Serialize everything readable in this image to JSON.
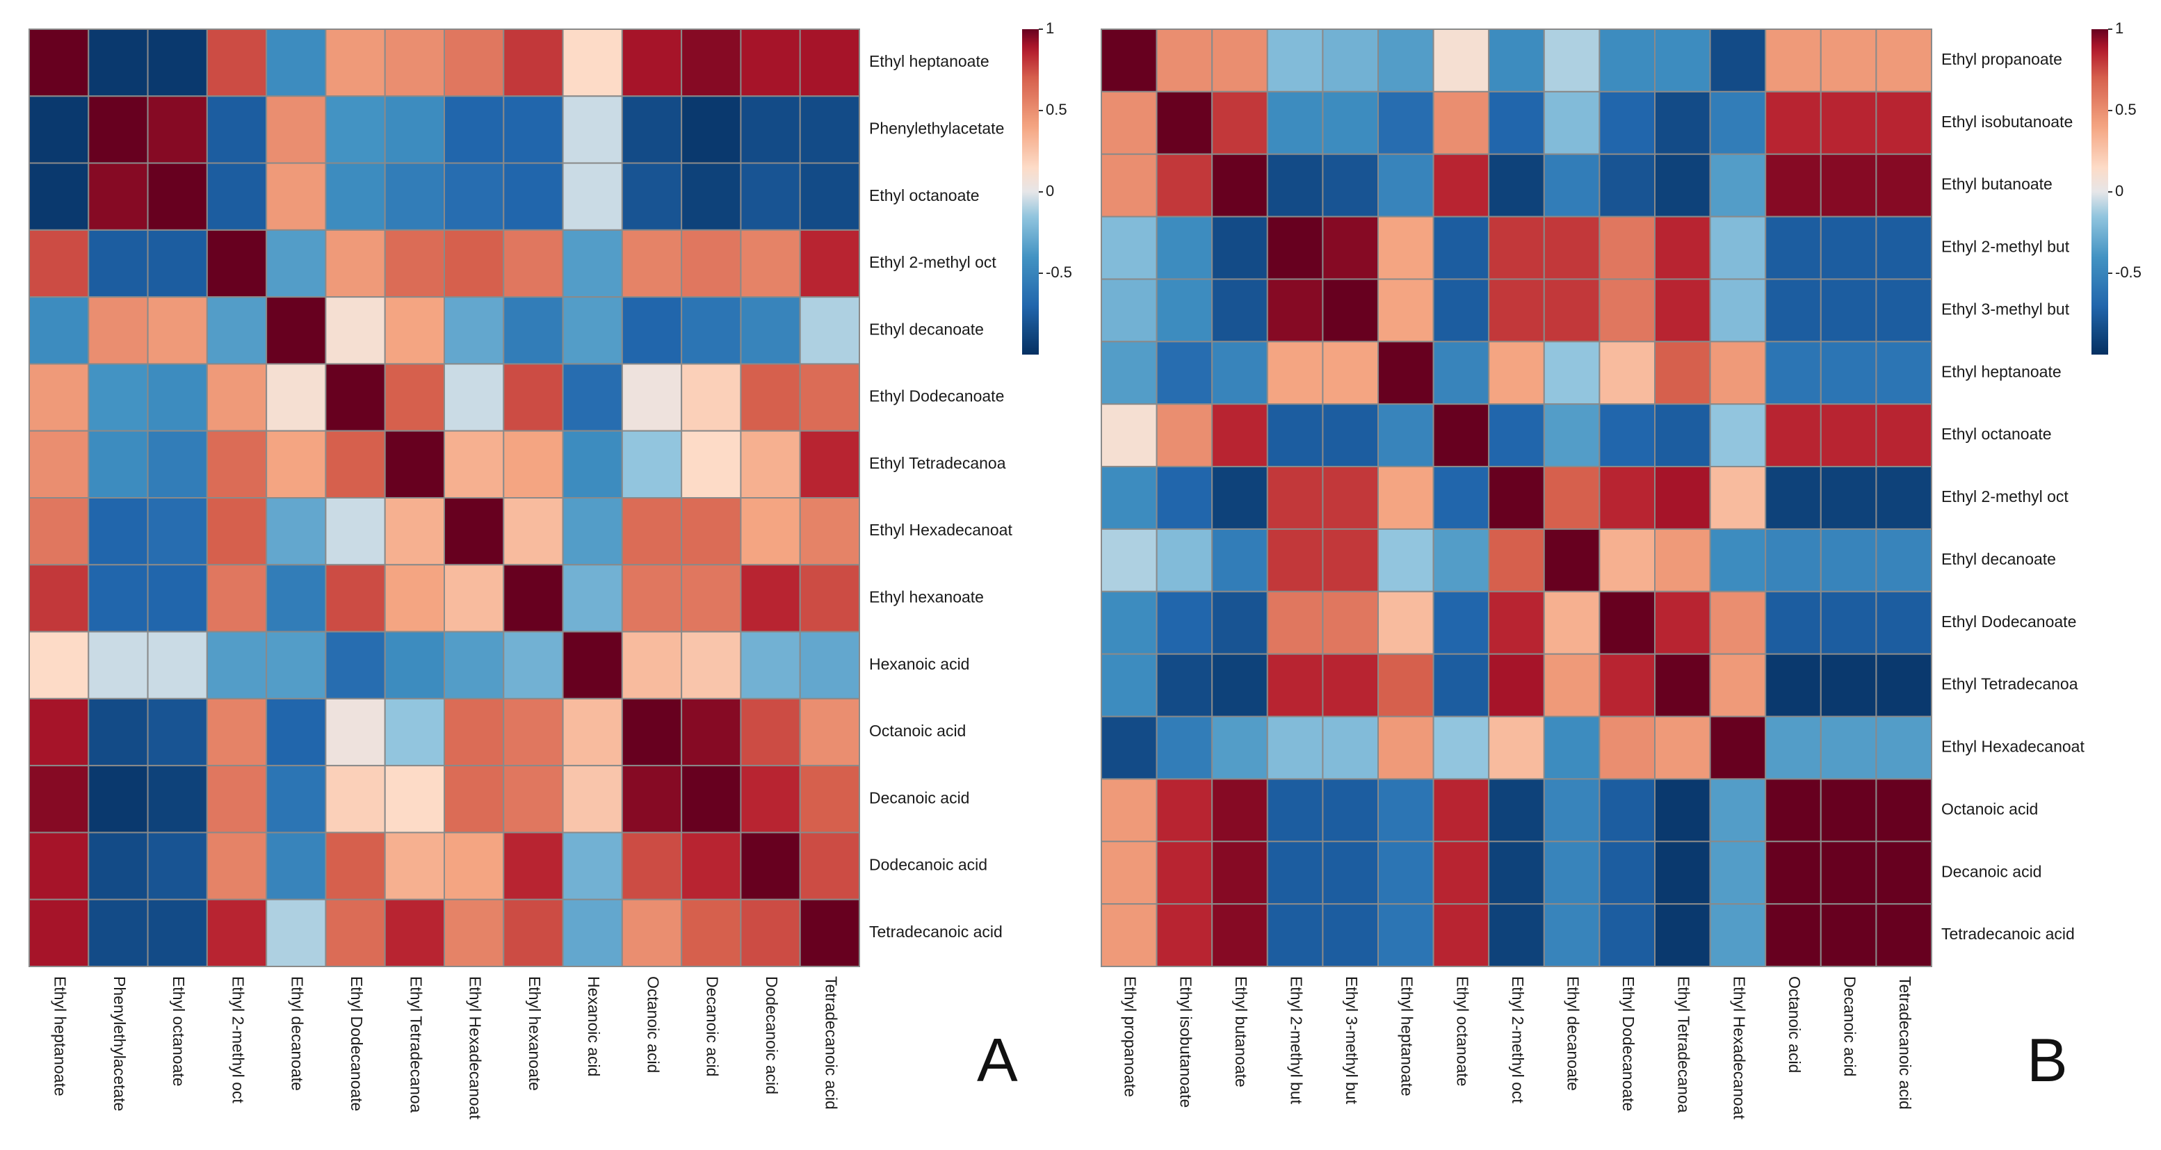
{
  "chart_data": [
    {
      "type": "heatmap",
      "panel_label": "A",
      "rows": [
        "Ethyl heptanoate",
        "Phenylethylacetate",
        "Ethyl octanoate",
        "Ethyl 2-methyl oct",
        "Ethyl decanoate",
        "Ethyl Dodecanoate",
        "Ethyl Tetradecanoa",
        "Ethyl Hexadecanoat",
        "Ethyl hexanoate",
        "Hexanoic acid",
        "Octanoic acid",
        "Decanoic acid",
        "Dodecanoic acid",
        "Tetradecanoic acid"
      ],
      "columns": [
        "Ethyl heptanoate",
        "Phenylethylacetate",
        "Ethyl octanoate",
        "Ethyl 2-methyl oct",
        "Ethyl decanoate",
        "Ethyl Dodecanoate",
        "Ethyl Tetradecanoa",
        "Ethyl Hexadecanoat",
        "Ethyl hexanoate",
        "Hexanoic acid",
        "Octanoic acid",
        "Decanoic acid",
        "Dodecanoic acid",
        "Tetradecanoic acid"
      ],
      "values": [
        [
          1.0,
          -0.95,
          -0.95,
          0.75,
          -0.45,
          0.45,
          0.5,
          0.6,
          0.8,
          0.15,
          0.9,
          0.95,
          0.9,
          0.9
        ],
        [
          -0.95,
          1.0,
          0.95,
          -0.75,
          0.5,
          -0.4,
          -0.45,
          -0.7,
          -0.7,
          -0.05,
          -0.85,
          -0.95,
          -0.85,
          -0.85
        ],
        [
          -0.95,
          0.95,
          1.0,
          -0.75,
          0.45,
          -0.45,
          -0.55,
          -0.65,
          -0.7,
          -0.05,
          -0.8,
          -0.9,
          -0.8,
          -0.85
        ],
        [
          0.75,
          -0.75,
          -0.75,
          1.0,
          -0.35,
          0.45,
          0.65,
          0.7,
          0.6,
          -0.35,
          0.55,
          0.6,
          0.55,
          0.85
        ],
        [
          -0.45,
          0.5,
          0.45,
          -0.35,
          1.0,
          0.1,
          0.4,
          -0.3,
          -0.55,
          -0.35,
          -0.7,
          -0.6,
          -0.5,
          -0.1
        ],
        [
          0.45,
          -0.4,
          -0.45,
          0.45,
          0.1,
          1.0,
          0.7,
          -0.05,
          0.75,
          -0.65,
          0.05,
          0.2,
          0.7,
          0.65
        ],
        [
          0.5,
          -0.45,
          -0.55,
          0.65,
          0.4,
          0.7,
          1.0,
          0.35,
          0.4,
          -0.45,
          -0.15,
          0.15,
          0.35,
          0.85
        ],
        [
          0.6,
          -0.7,
          -0.65,
          0.7,
          -0.3,
          -0.05,
          0.35,
          1.0,
          0.3,
          -0.35,
          0.65,
          0.65,
          0.4,
          0.55
        ],
        [
          0.8,
          -0.7,
          -0.7,
          0.6,
          -0.55,
          0.75,
          0.4,
          0.3,
          1.0,
          -0.25,
          0.6,
          0.6,
          0.85,
          0.75
        ],
        [
          0.15,
          -0.05,
          -0.05,
          -0.35,
          -0.35,
          -0.65,
          -0.45,
          -0.35,
          -0.25,
          1.0,
          0.3,
          0.25,
          -0.25,
          -0.3
        ],
        [
          0.9,
          -0.85,
          -0.8,
          0.55,
          -0.7,
          0.05,
          -0.15,
          0.65,
          0.6,
          0.3,
          1.0,
          0.95,
          0.75,
          0.5
        ],
        [
          0.95,
          -0.95,
          -0.9,
          0.6,
          -0.6,
          0.2,
          0.15,
          0.65,
          0.6,
          0.25,
          0.95,
          1.0,
          0.85,
          0.7
        ],
        [
          0.9,
          -0.85,
          -0.8,
          0.55,
          -0.5,
          0.7,
          0.35,
          0.4,
          0.85,
          -0.25,
          0.75,
          0.85,
          1.0,
          0.75
        ],
        [
          0.9,
          -0.85,
          -0.85,
          0.85,
          -0.1,
          0.65,
          0.85,
          0.55,
          0.75,
          -0.3,
          0.5,
          0.7,
          0.75,
          1.0
        ]
      ],
      "colorbar": {
        "ticks": [
          "1",
          "0.5",
          "0",
          "-0.5"
        ],
        "min": -1,
        "max": 1
      }
    },
    {
      "type": "heatmap",
      "panel_label": "B",
      "rows": [
        "Ethyl propanoate",
        "Ethyl isobutanoate",
        "Ethyl butanoate",
        "Ethyl 2-methyl but",
        "Ethyl 3-methyl but",
        "Ethyl heptanoate",
        "Ethyl octanoate",
        "Ethyl 2-methyl oct",
        "Ethyl decanoate",
        "Ethyl Dodecanoate",
        "Ethyl Tetradecanoa",
        "Ethyl Hexadecanoat",
        "Octanoic acid",
        "Decanoic acid",
        "Tetradecanoic acid"
      ],
      "columns": [
        "Ethyl propanoate",
        "Ethyl isobutanoate",
        "Ethyl butanoate",
        "Ethyl 2-methyl but",
        "Ethyl 3-methyl but",
        "Ethyl heptanoate",
        "Ethyl octanoate",
        "Ethyl 2-methyl oct",
        "Ethyl decanoate",
        "Ethyl Dodecanoate",
        "Ethyl Tetradecanoa",
        "Ethyl Hexadecanoat",
        "Octanoic acid",
        "Decanoic acid",
        "Tetradecanoic acid"
      ],
      "values": [
        [
          1.0,
          0.5,
          0.5,
          -0.2,
          -0.25,
          -0.35,
          0.1,
          -0.45,
          -0.1,
          -0.45,
          -0.45,
          -0.85,
          0.45,
          0.45,
          0.45
        ],
        [
          0.5,
          1.0,
          0.8,
          -0.45,
          -0.45,
          -0.65,
          0.5,
          -0.7,
          -0.2,
          -0.7,
          -0.85,
          -0.55,
          0.85,
          0.85,
          0.85
        ],
        [
          0.5,
          0.8,
          1.0,
          -0.85,
          -0.8,
          -0.5,
          0.85,
          -0.9,
          -0.55,
          -0.8,
          -0.9,
          -0.35,
          0.95,
          0.95,
          0.95
        ],
        [
          -0.2,
          -0.45,
          -0.85,
          1.0,
          0.95,
          0.4,
          -0.75,
          0.8,
          0.8,
          0.6,
          0.85,
          -0.2,
          -0.75,
          -0.75,
          -0.75
        ],
        [
          -0.25,
          -0.45,
          -0.8,
          0.95,
          1.0,
          0.4,
          -0.75,
          0.8,
          0.8,
          0.6,
          0.85,
          -0.2,
          -0.75,
          -0.75,
          -0.75
        ],
        [
          -0.35,
          -0.65,
          -0.5,
          0.4,
          0.4,
          1.0,
          -0.5,
          0.4,
          -0.15,
          0.3,
          0.7,
          0.45,
          -0.6,
          -0.6,
          -0.6
        ],
        [
          0.1,
          0.5,
          0.85,
          -0.75,
          -0.75,
          -0.5,
          1.0,
          -0.7,
          -0.35,
          -0.7,
          -0.75,
          -0.15,
          0.85,
          0.85,
          0.85
        ],
        [
          -0.45,
          -0.7,
          -0.9,
          0.8,
          0.8,
          0.4,
          -0.7,
          1.0,
          0.7,
          0.85,
          0.9,
          0.3,
          -0.9,
          -0.9,
          -0.9
        ],
        [
          -0.1,
          -0.2,
          -0.55,
          0.8,
          0.8,
          -0.15,
          -0.35,
          0.7,
          1.0,
          0.35,
          0.45,
          -0.45,
          -0.5,
          -0.5,
          -0.5
        ],
        [
          -0.45,
          -0.7,
          -0.8,
          0.6,
          0.6,
          0.3,
          -0.7,
          0.85,
          0.35,
          1.0,
          0.85,
          0.5,
          -0.75,
          -0.75,
          -0.75
        ],
        [
          -0.45,
          -0.85,
          -0.9,
          0.85,
          0.85,
          0.7,
          -0.75,
          0.9,
          0.45,
          0.85,
          1.0,
          0.45,
          -0.95,
          -0.95,
          -0.95
        ],
        [
          -0.85,
          -0.55,
          -0.35,
          -0.2,
          -0.2,
          0.45,
          -0.15,
          0.3,
          -0.45,
          0.5,
          0.45,
          1.0,
          -0.35,
          -0.35,
          -0.35
        ],
        [
          0.45,
          0.85,
          0.95,
          -0.75,
          -0.75,
          -0.6,
          0.85,
          -0.9,
          -0.5,
          -0.75,
          -0.95,
          -0.35,
          1.0,
          1.0,
          1.0
        ],
        [
          0.45,
          0.85,
          0.95,
          -0.75,
          -0.75,
          -0.6,
          0.85,
          -0.9,
          -0.5,
          -0.75,
          -0.95,
          -0.35,
          1.0,
          1.0,
          1.0
        ],
        [
          0.45,
          0.85,
          0.95,
          -0.75,
          -0.75,
          -0.6,
          0.85,
          -0.9,
          -0.5,
          -0.75,
          -0.95,
          -0.35,
          1.0,
          1.0,
          1.0
        ]
      ],
      "colorbar": {
        "ticks": [
          "1",
          "0.5",
          "0",
          "-0.5"
        ],
        "min": -1,
        "max": 1
      }
    }
  ]
}
